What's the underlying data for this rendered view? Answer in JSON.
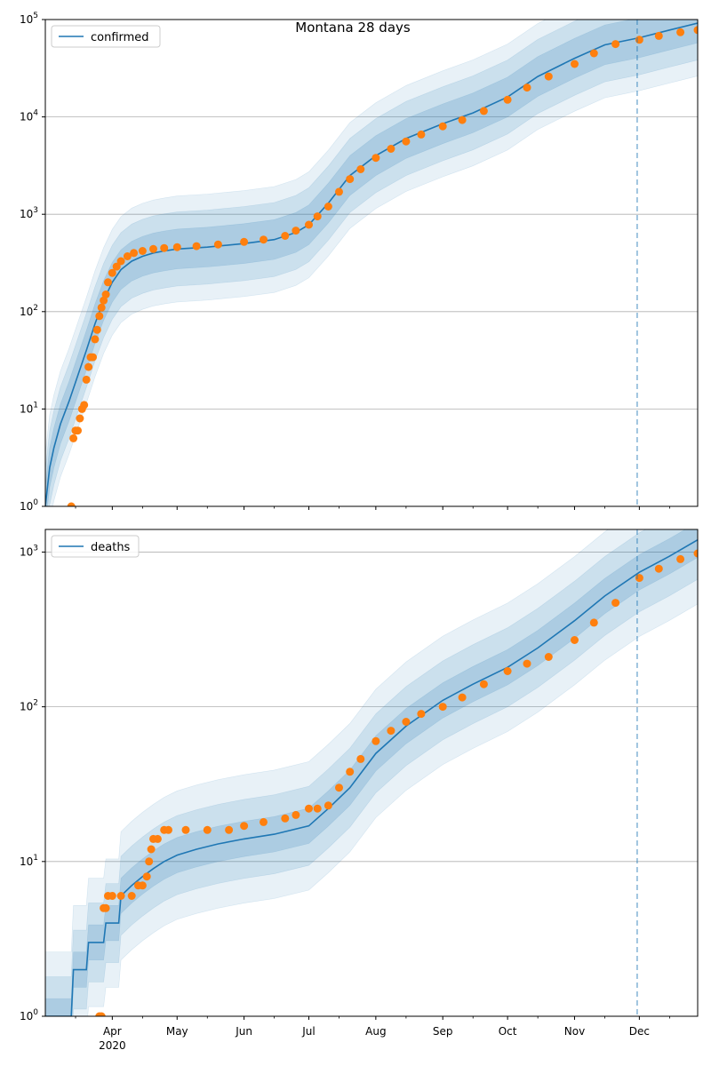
{
  "title": "Montana 28 days",
  "colors": {
    "model": "#1f77b4",
    "observed": "#ff7f0e",
    "band": "#1f77b4",
    "grid": "#b0b0b0",
    "vline": "#1f77b4"
  },
  "chart_data": [
    {
      "type": "line",
      "legend": "confirmed",
      "legend_position": "top-left",
      "yscale": "log",
      "ylim": [
        1,
        100000
      ],
      "xlim": [
        "2020-03-01",
        "2020-12-28"
      ],
      "y_ticks": [
        {
          "value": 1,
          "label": "10^0"
        },
        {
          "value": 10,
          "label": "10^1"
        },
        {
          "value": 100,
          "label": "10^2"
        },
        {
          "value": 1000,
          "label": "10^3"
        },
        {
          "value": 10000,
          "label": "10^4"
        },
        {
          "value": 100000,
          "label": "10^5"
        }
      ],
      "forecast_start": "2020-11-30",
      "model": {
        "x": [
          "2020-03-01",
          "2020-03-03",
          "2020-03-05",
          "2020-03-08",
          "2020-03-12",
          "2020-03-16",
          "2020-03-20",
          "2020-03-24",
          "2020-03-28",
          "2020-04-01",
          "2020-04-05",
          "2020-04-10",
          "2020-04-15",
          "2020-04-20",
          "2020-04-25",
          "2020-05-01",
          "2020-05-15",
          "2020-06-01",
          "2020-06-15",
          "2020-06-25",
          "2020-07-01",
          "2020-07-10",
          "2020-07-20",
          "2020-08-01",
          "2020-08-15",
          "2020-09-01",
          "2020-09-15",
          "2020-10-01",
          "2020-10-15",
          "2020-11-01",
          "2020-11-15",
          "2020-12-01",
          "2020-12-15",
          "2020-12-28"
        ],
        "y": [
          1,
          2.5,
          4,
          7,
          12,
          22,
          40,
          75,
          130,
          200,
          270,
          330,
          370,
          400,
          420,
          440,
          460,
          500,
          550,
          650,
          780,
          1300,
          2500,
          4000,
          6000,
          8500,
          11000,
          16000,
          26000,
          40000,
          55000,
          65000,
          78000,
          92000
        ],
        "band_widths": [
          1.6,
          2.4,
          3.5
        ]
      },
      "observed": {
        "x": [
          "2020-03-13",
          "2020-03-14",
          "2020-03-15",
          "2020-03-16",
          "2020-03-17",
          "2020-03-18",
          "2020-03-19",
          "2020-03-20",
          "2020-03-21",
          "2020-03-22",
          "2020-03-23",
          "2020-03-24",
          "2020-03-25",
          "2020-03-26",
          "2020-03-27",
          "2020-03-28",
          "2020-03-29",
          "2020-03-30",
          "2020-04-01",
          "2020-04-03",
          "2020-04-05",
          "2020-04-08",
          "2020-04-11",
          "2020-04-15",
          "2020-04-20",
          "2020-04-25",
          "2020-05-01",
          "2020-05-10",
          "2020-05-20",
          "2020-06-01",
          "2020-06-10",
          "2020-06-20",
          "2020-06-25",
          "2020-07-01",
          "2020-07-05",
          "2020-07-10",
          "2020-07-15",
          "2020-07-20",
          "2020-07-25",
          "2020-08-01",
          "2020-08-08",
          "2020-08-15",
          "2020-08-22",
          "2020-09-01",
          "2020-09-10",
          "2020-09-20",
          "2020-10-01",
          "2020-10-10",
          "2020-10-20",
          "2020-11-01",
          "2020-11-10",
          "2020-11-20",
          "2020-12-01",
          "2020-12-10",
          "2020-12-20",
          "2020-12-28"
        ],
        "y": [
          1,
          5,
          6,
          6,
          8,
          10,
          11,
          20,
          27,
          34,
          34,
          52,
          65,
          90,
          110,
          130,
          150,
          200,
          250,
          290,
          330,
          370,
          400,
          420,
          440,
          450,
          460,
          470,
          490,
          520,
          550,
          600,
          680,
          780,
          950,
          1200,
          1700,
          2300,
          2900,
          3800,
          4700,
          5600,
          6600,
          8000,
          9300,
          11500,
          15000,
          20000,
          26000,
          35000,
          45000,
          56000,
          62000,
          68000,
          74000,
          78000
        ]
      }
    },
    {
      "type": "line",
      "legend": "deaths",
      "legend_position": "top-left",
      "yscale": "log",
      "ylim": [
        1,
        1400
      ],
      "xlim": [
        "2020-03-01",
        "2020-12-28"
      ],
      "y_ticks": [
        {
          "value": 1,
          "label": "10^0"
        },
        {
          "value": 10,
          "label": "10^1"
        },
        {
          "value": 100,
          "label": "10^2"
        },
        {
          "value": 1000,
          "label": "10^3"
        }
      ],
      "forecast_start": "2020-11-30",
      "x_ticks": [
        {
          "date": "2020-04-01",
          "label": "Apr",
          "sublabel": "2020"
        },
        {
          "date": "2020-05-01",
          "label": "May"
        },
        {
          "date": "2020-06-01",
          "label": "Jun"
        },
        {
          "date": "2020-07-01",
          "label": "Jul"
        },
        {
          "date": "2020-08-01",
          "label": "Aug"
        },
        {
          "date": "2020-09-01",
          "label": "Sep"
        },
        {
          "date": "2020-10-01",
          "label": "Oct"
        },
        {
          "date": "2020-11-01",
          "label": "Nov"
        },
        {
          "date": "2020-12-01",
          "label": "Dec"
        }
      ],
      "model": {
        "x": [
          "2020-03-01",
          "2020-03-13",
          "2020-03-14",
          "2020-03-20",
          "2020-03-21",
          "2020-03-28",
          "2020-03-29",
          "2020-04-04",
          "2020-04-05",
          "2020-04-10",
          "2020-04-15",
          "2020-04-20",
          "2020-04-25",
          "2020-05-01",
          "2020-05-10",
          "2020-05-20",
          "2020-06-01",
          "2020-06-15",
          "2020-07-01",
          "2020-07-10",
          "2020-07-20",
          "2020-08-01",
          "2020-08-15",
          "2020-09-01",
          "2020-09-15",
          "2020-10-01",
          "2020-10-15",
          "2020-11-01",
          "2020-11-15",
          "2020-12-01",
          "2020-12-15",
          "2020-12-28"
        ],
        "y": [
          1,
          1,
          2,
          2,
          3,
          3,
          4,
          4,
          6,
          7,
          8,
          9,
          10,
          11,
          12,
          13,
          14,
          15,
          17,
          22,
          30,
          50,
          75,
          110,
          140,
          180,
          240,
          360,
          520,
          740,
          940,
          1200
        ],
        "band_widths": [
          1.3,
          1.8,
          2.6
        ]
      },
      "observed": {
        "x": [
          "2020-03-26",
          "2020-03-27",
          "2020-03-28",
          "2020-03-29",
          "2020-03-30",
          "2020-04-01",
          "2020-04-05",
          "2020-04-10",
          "2020-04-13",
          "2020-04-15",
          "2020-04-17",
          "2020-04-18",
          "2020-04-19",
          "2020-04-20",
          "2020-04-22",
          "2020-04-25",
          "2020-04-27",
          "2020-05-05",
          "2020-05-15",
          "2020-05-25",
          "2020-06-01",
          "2020-06-10",
          "2020-06-20",
          "2020-06-25",
          "2020-07-01",
          "2020-07-05",
          "2020-07-10",
          "2020-07-15",
          "2020-07-20",
          "2020-07-25",
          "2020-08-01",
          "2020-08-08",
          "2020-08-15",
          "2020-08-22",
          "2020-09-01",
          "2020-09-10",
          "2020-09-20",
          "2020-10-01",
          "2020-10-10",
          "2020-10-20",
          "2020-11-01",
          "2020-11-10",
          "2020-11-20",
          "2020-12-01",
          "2020-12-10",
          "2020-12-20",
          "2020-12-28"
        ],
        "y": [
          1,
          1,
          5,
          5,
          6,
          6,
          6,
          6,
          7,
          7,
          8,
          10,
          12,
          14,
          14,
          16,
          16,
          16,
          16,
          16,
          17,
          18,
          19,
          20,
          22,
          22,
          23,
          30,
          38,
          46,
          60,
          70,
          80,
          90,
          100,
          115,
          140,
          170,
          190,
          210,
          270,
          350,
          470,
          680,
          780,
          900,
          980
        ]
      }
    }
  ]
}
